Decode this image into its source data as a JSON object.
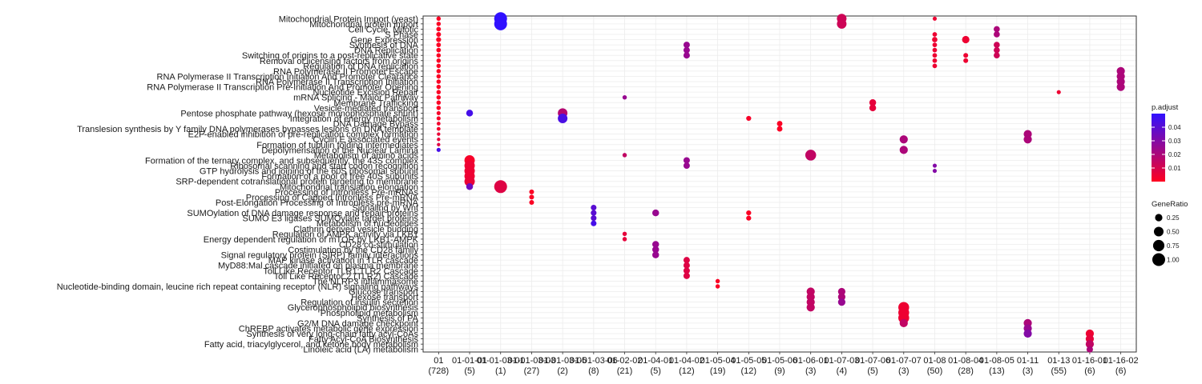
{
  "chart_data": {
    "type": "scatter",
    "title": "",
    "xlabel": "",
    "ylabel": "",
    "grid": true,
    "legend_position": "right",
    "colors": {
      "low": "#ff0020",
      "high": "#3010ff",
      "panel_border": "#333333",
      "grid": "#ececec"
    },
    "clusters": [
      {
        "name": "01",
        "count": "(728)"
      },
      {
        "name": "01-01-01",
        "count": "(5)"
      },
      {
        "name": "01-01-03-01",
        "count": "(1)"
      },
      {
        "name": "01-01-03-03",
        "count": "(27)"
      },
      {
        "name": "01-01-03-05",
        "count": "(2)"
      },
      {
        "name": "01-01-03-06",
        "count": "(8)"
      },
      {
        "name": "01-02-02",
        "count": "(21)"
      },
      {
        "name": "01-04-01",
        "count": "(5)"
      },
      {
        "name": "01-04-02",
        "count": "(12)"
      },
      {
        "name": "01-05-04",
        "count": "(19)"
      },
      {
        "name": "01-05-05",
        "count": "(12)"
      },
      {
        "name": "01-05-06",
        "count": "(9)"
      },
      {
        "name": "01-06-01",
        "count": "(3)"
      },
      {
        "name": "01-07-03",
        "count": "(4)"
      },
      {
        "name": "01-07-06",
        "count": "(5)"
      },
      {
        "name": "01-07-07",
        "count": "(3)"
      },
      {
        "name": "01-08",
        "count": "(50)"
      },
      {
        "name": "01-08-04",
        "count": "(28)"
      },
      {
        "name": "01-08-05",
        "count": "(13)"
      },
      {
        "name": "01-11",
        "count": "(3)"
      },
      {
        "name": "01-13",
        "count": "(55)"
      },
      {
        "name": "01-16-01",
        "count": "(6)"
      },
      {
        "name": "01-16-02",
        "count": "(6)"
      }
    ],
    "x_tick_labels": [
      "01",
      "01-01-01",
      "01-01-03-01",
      "01-01-03-03",
      "01-01-03-05",
      "01-01-03-06",
      "01-02-02",
      "01-04-01",
      "01-04-02",
      "01-05-04",
      "01-05-05",
      "01-05-06",
      "01-06-01",
      "01-07-03",
      "01-07-06",
      "01-07-07",
      "01-08",
      "01-08-04",
      "01-08-05",
      "01-11",
      "01-13",
      "01-16-01",
      "01-16-02"
    ],
    "x_count_labels": [
      "(728)",
      "(5)",
      "(1)",
      "(27)",
      "(2)",
      "(8)",
      "(21)",
      "(5)",
      "(12)",
      "(19)",
      "(12)",
      "(9)",
      "(3)",
      "(4)",
      "(5)",
      "(3)",
      "(50)",
      "(28)",
      "(13)",
      "(3)",
      "(55)",
      "(6)",
      "(6)"
    ],
    "terms": [
      "Mitochondrial Protein Import (yeast)",
      "Mitochondrial protein import",
      "Cell Cycle, Mitotic",
      "S Phase",
      "Gene Expression",
      "Synthesis of DNA",
      "DNA Replication",
      "Switching of origins to a post-replicative state",
      "Removal of licensing factors from origins",
      "Regulation of DNA replication",
      "RNA Polymerase II Promoter Escape",
      "RNA Polymerase II Transcription Initiation And Promoter Clearance",
      "RNA Polymerase II Transcription Initiation",
      "RNA Polymerase II Transcription Pre-Initiation And Promoter Opening",
      "Nucleotide Excision Repair",
      "mRNA Splicing - Major Pathway",
      "Membrane Trafficking",
      "Vesicle-mediated transport",
      "Pentose phosphate pathway (hexose monophosphate shunt)",
      "Integration of energy metabolism",
      "DNA Damage Bypass",
      "Translesion synthesis by Y family DNA polymerases bypasses lesions on DNA template",
      "E2F-enabled inhibition of pre-replication complex formation",
      "Cyclin E associated events",
      "Formation of tubulin folding intermediates",
      "Depolymerisation of the Nuclear Lamina",
      "Metabolism of amino acids",
      "Formation of the ternary complex, and subsequently, the 43S complex",
      "Ribosomal scanning and start codon recognition",
      "GTP hydrolysis and joining of the 60S ribosomal subunit",
      "Formation of a pool of free 40S subunits",
      "SRP-dependent cotranslational protein targeting to membrane",
      "Mitochondrial translation elongation",
      "Processing of Intronless Pre-mRNAs",
      "Processing of Capped Intronless Pre-mRNA",
      "Post-Elongation Processing of Intronless pre-mRNA",
      "Signaling by Wnt",
      "SUMOylation of DNA damage response and repair proteins",
      "SUMO E3 ligases SUMOylate target proteins",
      "Metabolism of nucleotides",
      "Clathrin derived vesicle budding",
      "Regulation of AMPK activity via LKB1",
      "Energy dependent regulation of mTOR by LKB1-AMPK",
      "CD28 co-stimulation",
      "Costimulation by the CD28 family",
      "Signal regulatory protein (SIRP) family interactions",
      "MAP kinase activation in TLR cascade",
      "MyD88:Mal cascade initiated on plasma membrane",
      "Toll Like Receptor TLR1:TLR2 Cascade",
      "Toll Like Receptor 2 (TLR2) Cascade",
      "The NLRP3 inflammasome",
      "Nucleotide-binding domain, leucine rich repeat containing receptor (NLR) signaling pathways",
      "Glucose transport",
      "Hexose transport",
      "Regulation of insulin secretion",
      "Glycerophospholipid biosynthesis",
      "Phospholipid metabolism",
      "Synthesis of PA",
      "G2/M DNA damage checkpoint",
      "ChREBP activates metabolic gene expression",
      "Synthesis of very long-chain fatty acyl-CoAs",
      "Fatty Acyl-CoA Biosynthesis",
      "Fatty acid, triacylglycerol, and ketone body metabolism",
      "Linoleic acid (LA) metabolism"
    ],
    "points": [
      {
        "cluster": 0,
        "term": 0,
        "ratio": 0.05,
        "padj": 0.001
      },
      {
        "cluster": 0,
        "term": 1,
        "ratio": 0.05,
        "padj": 0.001
      },
      {
        "cluster": 0,
        "term": 2,
        "ratio": 0.06,
        "padj": 0.001
      },
      {
        "cluster": 0,
        "term": 3,
        "ratio": 0.07,
        "padj": 0.001
      },
      {
        "cluster": 0,
        "term": 4,
        "ratio": 0.08,
        "padj": 0.001
      },
      {
        "cluster": 0,
        "term": 5,
        "ratio": 0.06,
        "padj": 0.001
      },
      {
        "cluster": 0,
        "term": 6,
        "ratio": 0.06,
        "padj": 0.001
      },
      {
        "cluster": 0,
        "term": 7,
        "ratio": 0.05,
        "padj": 0.001
      },
      {
        "cluster": 0,
        "term": 8,
        "ratio": 0.05,
        "padj": 0.001
      },
      {
        "cluster": 0,
        "term": 9,
        "ratio": 0.05,
        "padj": 0.001
      },
      {
        "cluster": 0,
        "term": 10,
        "ratio": 0.05,
        "padj": 0.001
      },
      {
        "cluster": 0,
        "term": 11,
        "ratio": 0.05,
        "padj": 0.001
      },
      {
        "cluster": 0,
        "term": 12,
        "ratio": 0.05,
        "padj": 0.001
      },
      {
        "cluster": 0,
        "term": 13,
        "ratio": 0.05,
        "padj": 0.001
      },
      {
        "cluster": 0,
        "term": 14,
        "ratio": 0.05,
        "padj": 0.001
      },
      {
        "cluster": 0,
        "term": 15,
        "ratio": 0.05,
        "padj": 0.001
      },
      {
        "cluster": 0,
        "term": 16,
        "ratio": 0.05,
        "padj": 0.001
      },
      {
        "cluster": 0,
        "term": 17,
        "ratio": 0.05,
        "padj": 0.001
      },
      {
        "cluster": 0,
        "term": 18,
        "ratio": 0.04,
        "padj": 0.002
      },
      {
        "cluster": 0,
        "term": 19,
        "ratio": 0.04,
        "padj": 0.002
      },
      {
        "cluster": 0,
        "term": 20,
        "ratio": 0.03,
        "padj": 0.003
      },
      {
        "cluster": 0,
        "term": 21,
        "ratio": 0.03,
        "padj": 0.003
      },
      {
        "cluster": 0,
        "term": 22,
        "ratio": 0.02,
        "padj": 0.005
      },
      {
        "cluster": 0,
        "term": 23,
        "ratio": 0.02,
        "padj": 0.006
      },
      {
        "cluster": 0,
        "term": 24,
        "ratio": 0.02,
        "padj": 0.008
      },
      {
        "cluster": 0,
        "term": 25,
        "ratio": 0.04,
        "padj": 0.045
      },
      {
        "cluster": 1,
        "term": 18,
        "ratio": 0.2,
        "padj": 0.045
      },
      {
        "cluster": 1,
        "term": 27,
        "ratio": 0.6,
        "padj": 0.002
      },
      {
        "cluster": 1,
        "term": 28,
        "ratio": 0.6,
        "padj": 0.004
      },
      {
        "cluster": 1,
        "term": 29,
        "ratio": 0.6,
        "padj": 0.004
      },
      {
        "cluster": 1,
        "term": 30,
        "ratio": 0.6,
        "padj": 0.004
      },
      {
        "cluster": 1,
        "term": 31,
        "ratio": 0.6,
        "padj": 0.005
      },
      {
        "cluster": 1,
        "term": 32,
        "ratio": 0.2,
        "padj": 0.035
      },
      {
        "cluster": 2,
        "term": 0,
        "ratio": 1.0,
        "padj": 0.05
      },
      {
        "cluster": 2,
        "term": 1,
        "ratio": 1.0,
        "padj": 0.05
      },
      {
        "cluster": 2,
        "term": 32,
        "ratio": 1.0,
        "padj": 0.008
      },
      {
        "cluster": 3,
        "term": 33,
        "ratio": 0.07,
        "padj": 0.001
      },
      {
        "cluster": 3,
        "term": 34,
        "ratio": 0.07,
        "padj": 0.001
      },
      {
        "cluster": 3,
        "term": 35,
        "ratio": 0.07,
        "padj": 0.001
      },
      {
        "cluster": 4,
        "term": 18,
        "ratio": 0.5,
        "padj": 0.018
      },
      {
        "cluster": 4,
        "term": 19,
        "ratio": 0.5,
        "padj": 0.044
      },
      {
        "cluster": 5,
        "term": 36,
        "ratio": 0.12,
        "padj": 0.04
      },
      {
        "cluster": 5,
        "term": 37,
        "ratio": 0.12,
        "padj": 0.04
      },
      {
        "cluster": 5,
        "term": 38,
        "ratio": 0.12,
        "padj": 0.04
      },
      {
        "cluster": 5,
        "term": 39,
        "ratio": 0.12,
        "padj": 0.045
      },
      {
        "cluster": 6,
        "term": 15,
        "ratio": 0.05,
        "padj": 0.025
      },
      {
        "cluster": 6,
        "term": 26,
        "ratio": 0.05,
        "padj": 0.015
      },
      {
        "cluster": 6,
        "term": 41,
        "ratio": 0.05,
        "padj": 0.006
      },
      {
        "cluster": 6,
        "term": 42,
        "ratio": 0.05,
        "padj": 0.006
      },
      {
        "cluster": 7,
        "term": 37,
        "ratio": 0.2,
        "padj": 0.025
      },
      {
        "cluster": 7,
        "term": 43,
        "ratio": 0.2,
        "padj": 0.025
      },
      {
        "cluster": 7,
        "term": 44,
        "ratio": 0.2,
        "padj": 0.025
      },
      {
        "cluster": 7,
        "term": 45,
        "ratio": 0.2,
        "padj": 0.025
      },
      {
        "cluster": 8,
        "term": 5,
        "ratio": 0.17,
        "padj": 0.025
      },
      {
        "cluster": 8,
        "term": 6,
        "ratio": 0.17,
        "padj": 0.025
      },
      {
        "cluster": 8,
        "term": 7,
        "ratio": 0.17,
        "padj": 0.025
      },
      {
        "cluster": 8,
        "term": 27,
        "ratio": 0.17,
        "padj": 0.025
      },
      {
        "cluster": 8,
        "term": 28,
        "ratio": 0.17,
        "padj": 0.025
      },
      {
        "cluster": 8,
        "term": 46,
        "ratio": 0.17,
        "padj": 0.008
      },
      {
        "cluster": 8,
        "term": 47,
        "ratio": 0.17,
        "padj": 0.008
      },
      {
        "cluster": 8,
        "term": 48,
        "ratio": 0.17,
        "padj": 0.008
      },
      {
        "cluster": 8,
        "term": 49,
        "ratio": 0.17,
        "padj": 0.008
      },
      {
        "cluster": 9,
        "term": 50,
        "ratio": 0.05,
        "padj": 0.001
      },
      {
        "cluster": 9,
        "term": 51,
        "ratio": 0.05,
        "padj": 0.001
      },
      {
        "cluster": 10,
        "term": 19,
        "ratio": 0.08,
        "padj": 0.002
      },
      {
        "cluster": 10,
        "term": 37,
        "ratio": 0.08,
        "padj": 0.001
      },
      {
        "cluster": 10,
        "term": 38,
        "ratio": 0.08,
        "padj": 0.001
      },
      {
        "cluster": 11,
        "term": 20,
        "ratio": 0.11,
        "padj": 0.001
      },
      {
        "cluster": 11,
        "term": 21,
        "ratio": 0.11,
        "padj": 0.001
      },
      {
        "cluster": 12,
        "term": 26,
        "ratio": 0.67,
        "padj": 0.015
      },
      {
        "cluster": 12,
        "term": 52,
        "ratio": 0.33,
        "padj": 0.015
      },
      {
        "cluster": 12,
        "term": 53,
        "ratio": 0.33,
        "padj": 0.015
      },
      {
        "cluster": 12,
        "term": 54,
        "ratio": 0.33,
        "padj": 0.015
      },
      {
        "cluster": 12,
        "term": 55,
        "ratio": 0.33,
        "padj": 0.015
      },
      {
        "cluster": 13,
        "term": 0,
        "ratio": 0.5,
        "padj": 0.012
      },
      {
        "cluster": 13,
        "term": 1,
        "ratio": 0.5,
        "padj": 0.012
      },
      {
        "cluster": 13,
        "term": 52,
        "ratio": 0.25,
        "padj": 0.02
      },
      {
        "cluster": 13,
        "term": 53,
        "ratio": 0.25,
        "padj": 0.02
      },
      {
        "cluster": 13,
        "term": 54,
        "ratio": 0.25,
        "padj": 0.025
      },
      {
        "cluster": 14,
        "term": 16,
        "ratio": 0.2,
        "padj": 0.006
      },
      {
        "cluster": 14,
        "term": 17,
        "ratio": 0.2,
        "padj": 0.006
      },
      {
        "cluster": 15,
        "term": 23,
        "ratio": 0.33,
        "padj": 0.02
      },
      {
        "cluster": 15,
        "term": 25,
        "ratio": 0.33,
        "padj": 0.02
      },
      {
        "cluster": 15,
        "term": 55,
        "ratio": 0.67,
        "padj": 0.004
      },
      {
        "cluster": 15,
        "term": 56,
        "ratio": 0.67,
        "padj": 0.004
      },
      {
        "cluster": 15,
        "term": 57,
        "ratio": 0.67,
        "padj": 0.004
      },
      {
        "cluster": 15,
        "term": 58,
        "ratio": 0.33,
        "padj": 0.015
      },
      {
        "cluster": 16,
        "term": 0,
        "ratio": 0.04,
        "padj": 0.004
      },
      {
        "cluster": 16,
        "term": 3,
        "ratio": 0.06,
        "padj": 0.004
      },
      {
        "cluster": 16,
        "term": 4,
        "ratio": 0.1,
        "padj": 0.004
      },
      {
        "cluster": 16,
        "term": 5,
        "ratio": 0.06,
        "padj": 0.004
      },
      {
        "cluster": 16,
        "term": 6,
        "ratio": 0.06,
        "padj": 0.004
      },
      {
        "cluster": 16,
        "term": 7,
        "ratio": 0.06,
        "padj": 0.004
      },
      {
        "cluster": 16,
        "term": 8,
        "ratio": 0.06,
        "padj": 0.004
      },
      {
        "cluster": 16,
        "term": 9,
        "ratio": 0.06,
        "padj": 0.004
      },
      {
        "cluster": 16,
        "term": 28,
        "ratio": 0.04,
        "padj": 0.03
      },
      {
        "cluster": 16,
        "term": 29,
        "ratio": 0.04,
        "padj": 0.03
      },
      {
        "cluster": 17,
        "term": 4,
        "ratio": 0.25,
        "padj": 0.004
      },
      {
        "cluster": 17,
        "term": 7,
        "ratio": 0.07,
        "padj": 0.004
      },
      {
        "cluster": 17,
        "term": 8,
        "ratio": 0.07,
        "padj": 0.004
      },
      {
        "cluster": 18,
        "term": 2,
        "ratio": 0.15,
        "padj": 0.02
      },
      {
        "cluster": 18,
        "term": 3,
        "ratio": 0.15,
        "padj": 0.02
      },
      {
        "cluster": 18,
        "term": 5,
        "ratio": 0.15,
        "padj": 0.012
      },
      {
        "cluster": 18,
        "term": 6,
        "ratio": 0.15,
        "padj": 0.012
      },
      {
        "cluster": 18,
        "term": 7,
        "ratio": 0.15,
        "padj": 0.012
      },
      {
        "cluster": 19,
        "term": 22,
        "ratio": 0.33,
        "padj": 0.02
      },
      {
        "cluster": 19,
        "term": 23,
        "ratio": 0.33,
        "padj": 0.02
      },
      {
        "cluster": 19,
        "term": 58,
        "ratio": 0.33,
        "padj": 0.02
      },
      {
        "cluster": 19,
        "term": 59,
        "ratio": 0.33,
        "padj": 0.025
      },
      {
        "cluster": 19,
        "term": 60,
        "ratio": 0.33,
        "padj": 0.03
      },
      {
        "cluster": 20,
        "term": 14,
        "ratio": 0.04,
        "padj": 0.004
      },
      {
        "cluster": 21,
        "term": 60,
        "ratio": 0.33,
        "padj": 0.004
      },
      {
        "cluster": 21,
        "term": 61,
        "ratio": 0.33,
        "padj": 0.006
      },
      {
        "cluster": 21,
        "term": 62,
        "ratio": 0.33,
        "padj": 0.015
      },
      {
        "cluster": 21,
        "term": 63,
        "ratio": 0.17,
        "padj": 0.02
      },
      {
        "cluster": 22,
        "term": 10,
        "ratio": 0.33,
        "padj": 0.02
      },
      {
        "cluster": 22,
        "term": 11,
        "ratio": 0.33,
        "padj": 0.02
      },
      {
        "cluster": 22,
        "term": 12,
        "ratio": 0.33,
        "padj": 0.02
      },
      {
        "cluster": 22,
        "term": 13,
        "ratio": 0.33,
        "padj": 0.02
      }
    ],
    "legend": {
      "color_title": "p.adjust",
      "color_ticks": [
        0.04,
        0.03,
        0.02,
        0.01
      ],
      "color_tick_labels": [
        "0.04",
        "0.03",
        "0.02",
        "0.01"
      ],
      "color_range": [
        0.0,
        0.05
      ],
      "size_title": "GeneRatio",
      "size_ticks": [
        0.25,
        0.5,
        0.75,
        1.0
      ],
      "size_tick_labels": [
        "0.25",
        "0.50",
        "0.75",
        "1.00"
      ]
    }
  }
}
